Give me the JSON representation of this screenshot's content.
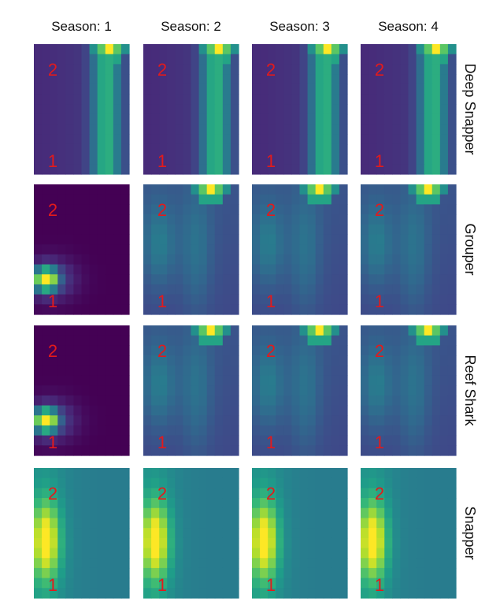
{
  "chart_data": {
    "type": "heatmap",
    "column_titles": [
      "Season: 1",
      "Season: 2",
      "Season: 3",
      "Season: 4"
    ],
    "row_labels": [
      "Deep Snapper",
      "Grouper",
      "Reef Shark",
      "Snapper"
    ],
    "marker_labels": {
      "top": "2",
      "bottom": "1"
    },
    "grid": {
      "rows": 13,
      "cols": 12
    },
    "colormap": "viridis",
    "value_range": [
      0,
      1
    ],
    "panels": [
      [
        {
          "pattern": "right_band",
          "base": 0.12,
          "band_center": 0.78,
          "band_peak": 0.6,
          "hotspot": [
            0,
            9,
            1.0
          ]
        },
        {
          "pattern": "right_band",
          "base": 0.12,
          "band_center": 0.78,
          "band_peak": 0.6,
          "hotspot": [
            0,
            9,
            1.0
          ]
        },
        {
          "pattern": "right_band",
          "base": 0.12,
          "band_center": 0.78,
          "band_peak": 0.6,
          "hotspot": [
            0,
            9,
            1.0
          ]
        },
        {
          "pattern": "right_band",
          "base": 0.12,
          "band_center": 0.78,
          "band_peak": 0.6,
          "hotspot": [
            0,
            9,
            1.0
          ]
        }
      ],
      [
        {
          "pattern": "left_spot",
          "base": 0.0,
          "spot_row": 9,
          "spot_peak": 1.0
        },
        {
          "pattern": "spread",
          "base": 0.22,
          "blob_peak": 0.4,
          "hotspot": [
            0,
            8,
            1.0
          ]
        },
        {
          "pattern": "spread",
          "base": 0.22,
          "blob_peak": 0.4,
          "hotspot": [
            0,
            8,
            1.0
          ]
        },
        {
          "pattern": "spread",
          "base": 0.22,
          "blob_peak": 0.4,
          "hotspot": [
            0,
            8,
            1.0
          ]
        }
      ],
      [
        {
          "pattern": "left_spot",
          "base": 0.0,
          "spot_row": 9,
          "spot_peak": 1.0
        },
        {
          "pattern": "spread",
          "base": 0.22,
          "blob_peak": 0.4,
          "hotspot": [
            0,
            8,
            1.0
          ]
        },
        {
          "pattern": "spread",
          "base": 0.22,
          "blob_peak": 0.4,
          "hotspot": [
            0,
            8,
            1.0
          ]
        },
        {
          "pattern": "spread",
          "base": 0.22,
          "blob_peak": 0.4,
          "hotspot": [
            0,
            8,
            1.0
          ]
        }
      ],
      [
        {
          "pattern": "left_blob",
          "base": 0.42,
          "blob_peak": 1.0
        },
        {
          "pattern": "left_blob",
          "base": 0.42,
          "blob_peak": 1.0
        },
        {
          "pattern": "left_blob",
          "base": 0.42,
          "blob_peak": 1.0
        },
        {
          "pattern": "left_blob",
          "base": 0.42,
          "blob_peak": 1.0
        }
      ]
    ]
  }
}
